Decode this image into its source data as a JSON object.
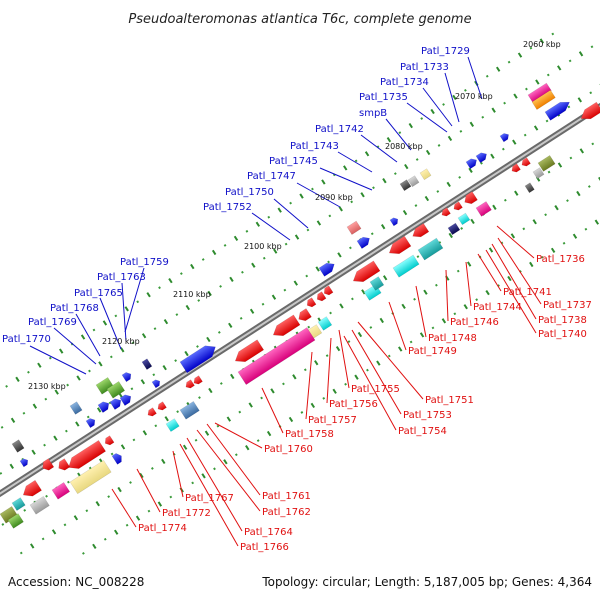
{
  "title": "Pseudoalteromonas atlantica T6c, complete genome",
  "footer": {
    "accession": "Accession: NC_008228",
    "summary": "Topology: circular; Length: 5,187,005 bp; Genes: 4,364"
  },
  "scale_labels": [
    "2060 kbp",
    "2070 kbp",
    "2080 kbp",
    "2090 kbp",
    "2100 kbp",
    "2110 kbp",
    "2120 kbp",
    "2130 kbp"
  ],
  "upper_strand_genes": [
    "Patl_1729",
    "Patl_1733",
    "Patl_1734",
    "Patl_1735",
    "smpB",
    "Patl_1742",
    "Patl_1743",
    "Patl_1745",
    "Patl_1747",
    "Patl_1750",
    "Patl_1752",
    "Patl_1759",
    "Patl_1763",
    "Patl_1765",
    "Patl_1768",
    "Patl_1769",
    "Patl_1770"
  ],
  "lower_strand_genes": [
    "Patl_1736",
    "Patl_1737",
    "Patl_1738",
    "Patl_1740",
    "Patl_1741",
    "Patl_1744",
    "Patl_1746",
    "Patl_1748",
    "Patl_1749",
    "Patl_1751",
    "Patl_1753",
    "Patl_1754",
    "Patl_1755",
    "Patl_1756",
    "Patl_1757",
    "Patl_1758",
    "Patl_1760",
    "Patl_1761",
    "Patl_1762",
    "Patl_1764",
    "Patl_1766",
    "Patl_1767",
    "Patl_1772",
    "Patl_1774"
  ],
  "colors": {
    "forward_label": "#1010c8",
    "reverse_label": "#e01010",
    "backbone": "#8c8c8c",
    "tick": "#2e8b2e"
  }
}
